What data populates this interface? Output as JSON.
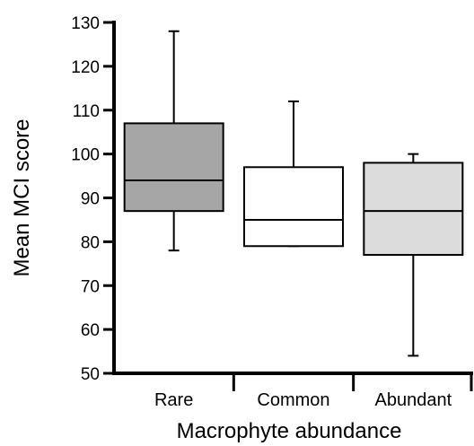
{
  "chart_data": {
    "type": "boxplot",
    "xlabel": "Macrophyte abundance",
    "ylabel": "Mean MCI score",
    "ylim": [
      50,
      130
    ],
    "yticks": [
      50,
      60,
      70,
      80,
      90,
      100,
      110,
      120,
      130
    ],
    "categories": [
      "Rare",
      "Common",
      "Abundant"
    ],
    "boxes": [
      {
        "category": "Rare",
        "min": 78,
        "q1": 87,
        "median": 94,
        "q3": 107,
        "max": 128,
        "fill": "#a6a6a6"
      },
      {
        "category": "Common",
        "min": 79,
        "q1": 79,
        "median": 85,
        "q3": 97,
        "max": 112,
        "fill": "#ffffff"
      },
      {
        "category": "Abundant",
        "min": 54,
        "q1": 77,
        "median": 87,
        "q3": 98,
        "max": 100,
        "fill": "#dcdcdc"
      }
    ],
    "grid": false,
    "legend": "none"
  }
}
